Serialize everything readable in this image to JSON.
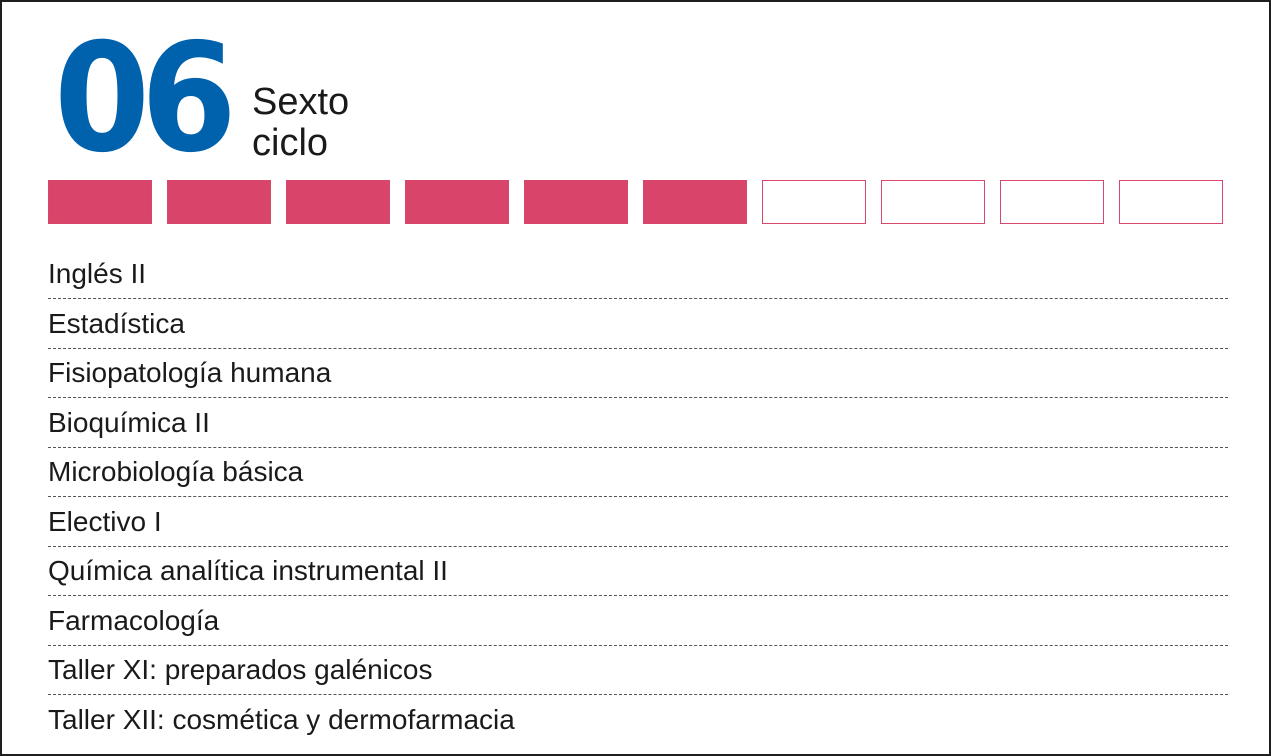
{
  "header": {
    "cycle_number": "06",
    "cycle_label_line1": "Sexto",
    "cycle_label_line2": "ciclo"
  },
  "progress": {
    "completed": 6,
    "total": 10,
    "filled_color": "#d8446a",
    "outline_color": "#d8486a"
  },
  "colors": {
    "number": "#0062ad",
    "text": "#1a1a1a"
  },
  "courses": [
    "Inglés II",
    "Estadística",
    "Fisiopatología humana",
    "Bioquímica II",
    "Microbiología básica",
    "Electivo I",
    "Química analítica instrumental II",
    "Farmacología",
    "Taller XI: preparados galénicos",
    "Taller XII: cosmética y dermofarmacia"
  ]
}
